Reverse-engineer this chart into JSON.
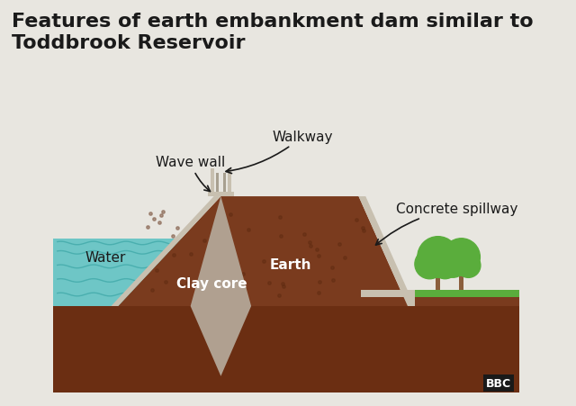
{
  "title": "Features of earth embankment dam similar to\nToddbrook Reservoir",
  "title_fontsize": 16,
  "title_color": "#1a1a1a",
  "bg_color": "#e8e6e0",
  "water_color": "#6ec6c6",
  "water_wave_color": "#4aafaf",
  "earth_color": "#7a3b1e",
  "earth_dark_color": "#5c2a10",
  "clay_color": "#b0a090",
  "grass_color": "#5aad3c",
  "concrete_color": "#c8c0b0",
  "ground_color": "#6b2e12",
  "trunk_color": "#8B5E3C",
  "label_color": "#1a1a1a",
  "white_label_color": "#ffffff",
  "label_fontsize": 11,
  "labels": {
    "walkway": "Walkway",
    "wave_wall": "Wave wall",
    "water": "Water",
    "clay_core": "Clay core",
    "earth": "Earth",
    "concrete_spillway": "Concrete spillway"
  }
}
